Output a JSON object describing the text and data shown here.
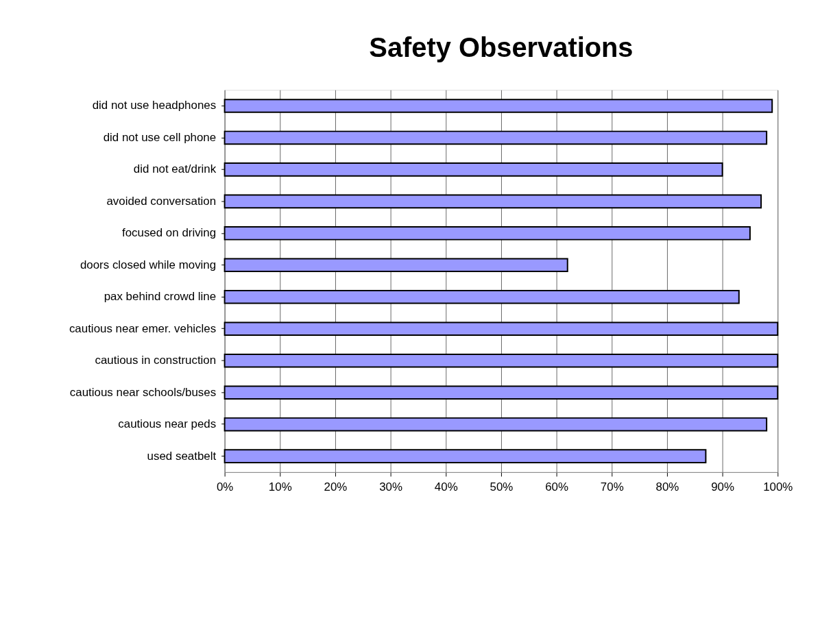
{
  "chart_data": {
    "type": "bar",
    "orientation": "horizontal",
    "title": "Safety Observations",
    "categories": [
      "did not use headphones",
      "did not use cell phone",
      "did not eat/drink",
      "avoided conversation",
      "focused on driving",
      "doors closed while moving",
      "pax behind crowd line",
      "cautious near emer. vehicles",
      "cautious in construction",
      "cautious near schools/buses",
      "cautious near peds",
      "used seatbelt"
    ],
    "values": [
      99,
      98,
      90,
      97,
      95,
      62,
      93,
      100,
      100,
      100,
      98,
      87
    ],
    "color": "#9999ff",
    "xlim": [
      0,
      100
    ],
    "xticks": [
      {
        "value": 0,
        "label": "0%"
      },
      {
        "value": 10,
        "label": "10%"
      },
      {
        "value": 20,
        "label": "20%"
      },
      {
        "value": 30,
        "label": "30%"
      },
      {
        "value": 40,
        "label": "40%"
      },
      {
        "value": 50,
        "label": "50%"
      },
      {
        "value": 60,
        "label": "60%"
      },
      {
        "value": 70,
        "label": "70%"
      },
      {
        "value": 80,
        "label": "80%"
      },
      {
        "value": 90,
        "label": "90%"
      },
      {
        "value": 100,
        "label": "100%"
      }
    ],
    "grid": "x"
  }
}
